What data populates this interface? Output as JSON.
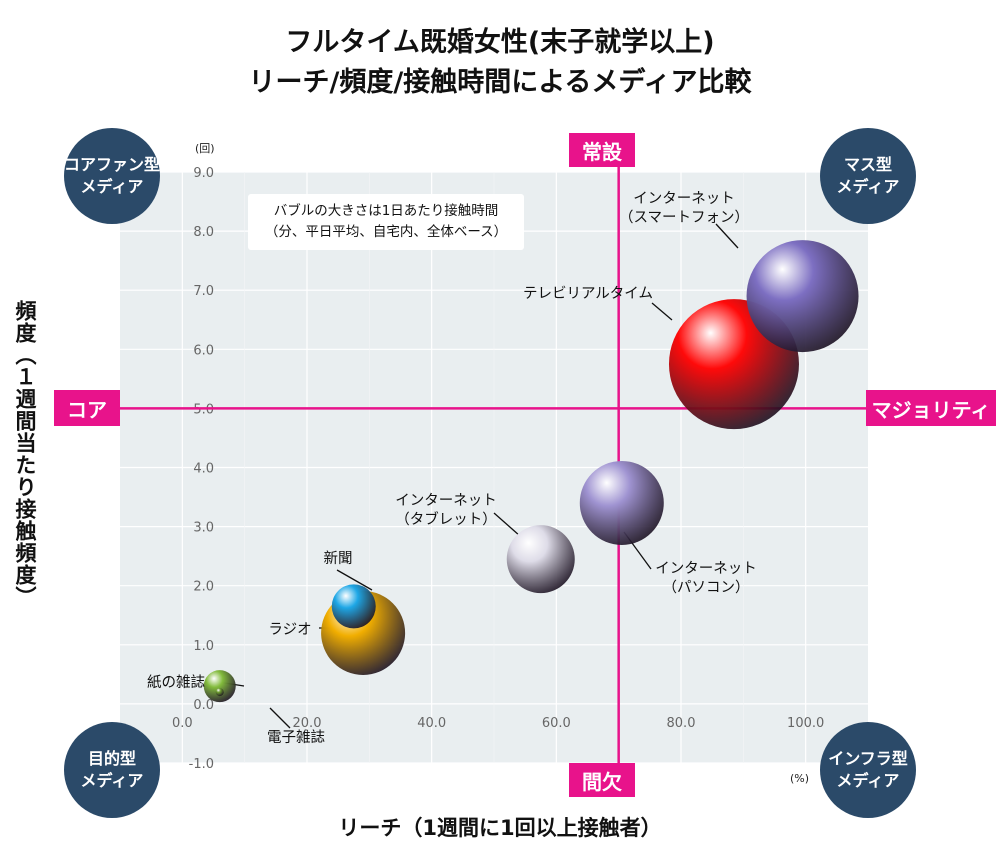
{
  "chart_data": {
    "type": "bubble",
    "title": [
      "フルタイム既婚女性(末子就学以上)",
      "リーチ/頻度/接触時間によるメディア比較"
    ],
    "xlabel": "リーチ（1週間に1回以上接触者）",
    "ylabel": "頻度（１週間当たり接触頻度）",
    "x_unit": "(%)",
    "y_unit": "(回)",
    "xlim": [
      -10,
      110
    ],
    "ylim": [
      -1.0,
      9.0
    ],
    "x_ticks": [
      0,
      20,
      40,
      60,
      80,
      100
    ],
    "x_tick_labels": [
      "0.0",
      "20.0",
      "40.0",
      "60.0",
      "80.0",
      "100.0"
    ],
    "y_ticks": [
      9,
      8,
      7,
      6,
      5,
      4,
      3,
      2,
      1,
      0,
      -1
    ],
    "y_tick_labels": [
      "9.0",
      "8.0",
      "7.0",
      "6.0",
      "5.0",
      "4.0",
      "3.0",
      "2.0",
      "1.0",
      "0.0",
      "-1.0"
    ],
    "reference_lines": {
      "x": 70,
      "y": 5.0
    },
    "note": [
      "バブルの大きさは1日あたり接触時間",
      "（分、平日平均、自宅内、全体ベース）"
    ],
    "quadrant_axis_labels": {
      "top": "常設",
      "bottom": "間欠",
      "left": "コア",
      "right": "マジョリティ"
    },
    "quadrant_badges": {
      "top_left": "コアファン型\nメディア",
      "top_right": "マス型\nメディア",
      "bottom_left": "目的型\nメディア",
      "bottom_right": "インフラ型\nメディア"
    },
    "series": [
      {
        "name": "テレビリアルタイム",
        "label": [
          "テレビリアルタイム"
        ],
        "x": 88.5,
        "y": 5.75,
        "r": 65,
        "color": "#ff0a0a"
      },
      {
        "name": "インターネット（スマートフォン）",
        "label": [
          "インターネット",
          "（スマートフォン）"
        ],
        "x": 99.5,
        "y": 6.9,
        "r": 56,
        "color": "#7d6fc2"
      },
      {
        "name": "インターネット（パソコン）",
        "label": [
          "インターネット",
          "（パソコン）"
        ],
        "x": 70.5,
        "y": 3.4,
        "r": 42,
        "color": "#9f93d1"
      },
      {
        "name": "インターネット（タブレット）",
        "label": [
          "インターネット",
          "（タブレット）"
        ],
        "x": 57.5,
        "y": 2.45,
        "r": 34,
        "color": "#dedce8"
      },
      {
        "name": "ラジオ",
        "label": [
          "ラジオ"
        ],
        "x": 29.0,
        "y": 1.2,
        "r": 42,
        "color": "#f1ae00"
      },
      {
        "name": "新聞",
        "label": [
          "新聞"
        ],
        "x": 27.5,
        "y": 1.65,
        "r": 22,
        "color": "#1ea7e6"
      },
      {
        "name": "紙の雑誌",
        "label": [
          "紙の雑誌"
        ],
        "x": 6.0,
        "y": 0.3,
        "r": 16,
        "color": "#82bb3c"
      },
      {
        "name": "電子雑誌",
        "label": [
          "電子雑誌"
        ],
        "x": 6.0,
        "y": 0.2,
        "r": 4,
        "color": "#6e9f30"
      }
    ]
  }
}
